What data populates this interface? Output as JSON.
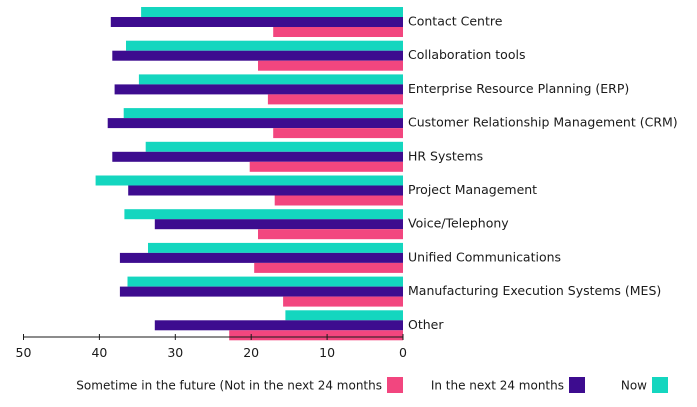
{
  "chart_data": {
    "type": "bar",
    "orientation": "horizontal",
    "x_axis_reversed": true,
    "categories": [
      "Contact Centre",
      "Collaboration tools",
      "Enterprise Resource Planning (ERP)",
      "Customer Relationship Management (CRM)",
      "HR Systems",
      "Project Management",
      "Voice/Telephony",
      "Unified Communications",
      "Manufacturing Execution Systems (MES)",
      "Other"
    ],
    "series": [
      {
        "name": "Now",
        "color": "#14d6bf",
        "values": [
          34.5,
          36.5,
          34.8,
          36.8,
          33.9,
          40.5,
          36.7,
          33.6,
          36.3,
          15.5
        ]
      },
      {
        "name": "In the next 24 months",
        "color": "#3d0c8f",
        "values": [
          38.5,
          38.3,
          38.0,
          38.9,
          38.3,
          36.2,
          32.7,
          37.3,
          37.3,
          32.7
        ]
      },
      {
        "name": "Sometime in the future (Not in the next 24 months",
        "color": "#f2467f",
        "values": [
          17.1,
          19.1,
          17.8,
          17.1,
          20.2,
          16.9,
          19.1,
          19.6,
          15.8,
          22.9
        ]
      }
    ],
    "xlim": [
      0,
      50
    ],
    "x_ticks": [
      "0",
      "10",
      "20",
      "30",
      "40",
      "50"
    ],
    "title": "",
    "xlabel": "",
    "ylabel": "",
    "grid": false,
    "legend_position": "bottom"
  }
}
